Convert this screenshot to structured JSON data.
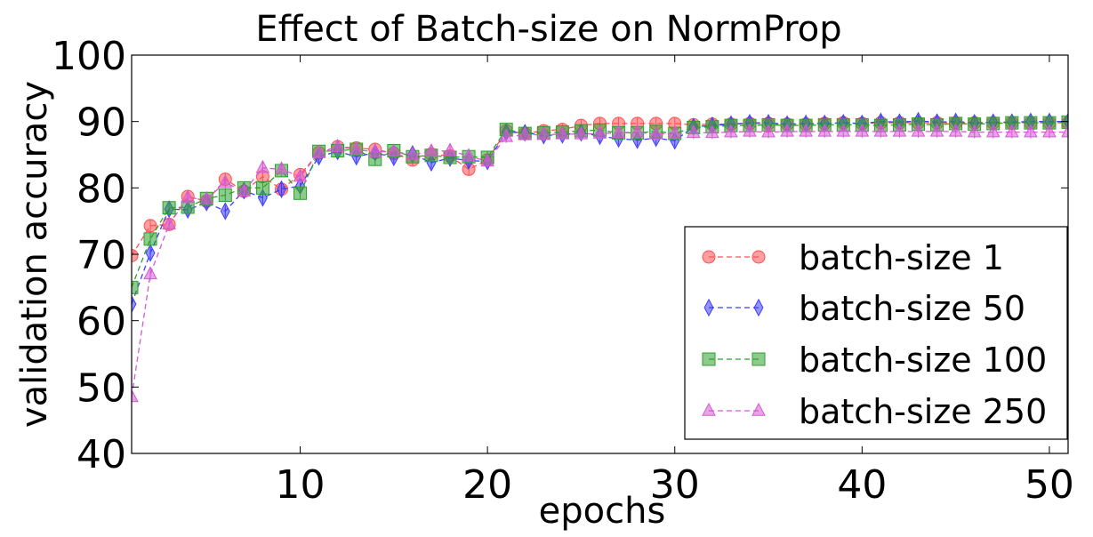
{
  "chart_data": {
    "type": "line",
    "title": "Effect of Batch-size on NormProp",
    "xlabel": "epochs",
    "ylabel": "validation accuracy",
    "xlim": [
      1,
      51
    ],
    "ylim": [
      40,
      100
    ],
    "xticks": [
      10,
      20,
      30,
      40,
      50
    ],
    "yticks": [
      40,
      50,
      60,
      70,
      80,
      90,
      100
    ],
    "grid": false,
    "legend_position": "bottom-right",
    "x": [
      1,
      2,
      3,
      4,
      5,
      6,
      7,
      8,
      9,
      10,
      11,
      12,
      13,
      14,
      15,
      16,
      17,
      18,
      19,
      20,
      21,
      22,
      23,
      24,
      25,
      26,
      27,
      28,
      29,
      30,
      31,
      32,
      33,
      34,
      35,
      36,
      37,
      38,
      39,
      40,
      41,
      42,
      43,
      44,
      45,
      46,
      47,
      48,
      49,
      50,
      51
    ],
    "series": [
      {
        "name": "batch-size 1",
        "color": "#ff5050",
        "marker": "circle",
        "values": [
          69.8,
          74.3,
          74.5,
          78.7,
          78.0,
          81.3,
          79.5,
          81.7,
          79.8,
          82.0,
          85.3,
          86.2,
          86.0,
          85.8,
          85.2,
          84.2,
          85.1,
          84.8,
          82.8,
          84.2,
          88.6,
          88.2,
          88.6,
          88.8,
          89.4,
          89.7,
          89.7,
          89.7,
          89.7,
          89.7,
          89.5,
          89.6,
          89.6,
          89.7,
          89.7,
          89.6,
          89.6,
          89.7,
          89.8,
          89.7,
          89.8,
          89.8,
          89.8,
          89.8,
          89.8,
          89.8,
          89.8,
          89.8,
          89.8,
          89.8,
          89.8
        ]
      },
      {
        "name": "batch-size 50",
        "color": "#3c3cff",
        "marker": "diamond",
        "values": [
          62.5,
          70.2,
          76.8,
          76.7,
          77.8,
          76.5,
          79.6,
          78.5,
          79.8,
          80.3,
          84.7,
          85.5,
          84.7,
          85.3,
          84.6,
          85.1,
          83.8,
          84.5,
          84.1,
          84.0,
          88.4,
          88.3,
          87.9,
          88.0,
          88.3,
          87.8,
          87.4,
          87.2,
          87.5,
          87.1,
          89.2,
          89.4,
          89.6,
          89.8,
          89.8,
          89.6,
          89.7,
          89.7,
          89.8,
          89.7,
          90.0,
          89.9,
          90.1,
          89.9,
          90.0,
          89.8,
          89.9,
          89.9,
          90.0,
          90.0,
          90.0
        ]
      },
      {
        "name": "batch-size 100",
        "color": "#2ea02e",
        "marker": "square",
        "values": [
          65.0,
          72.3,
          77.0,
          77.1,
          78.4,
          78.9,
          80.0,
          80.0,
          82.6,
          79.2,
          85.5,
          85.6,
          85.8,
          84.3,
          85.6,
          84.7,
          84.9,
          84.6,
          84.7,
          84.6,
          88.8,
          88.2,
          88.3,
          88.4,
          88.6,
          88.7,
          88.3,
          88.3,
          88.5,
          88.2,
          89.1,
          89.2,
          89.4,
          89.4,
          89.5,
          89.4,
          89.4,
          89.5,
          89.5,
          89.5,
          89.4,
          89.5,
          89.6,
          89.5,
          89.7,
          89.6,
          89.7,
          89.8,
          89.8,
          89.8,
          89.9
        ]
      },
      {
        "name": "batch-size 250",
        "color": "#d45ad4",
        "marker": "triangle",
        "values": [
          48.5,
          67.0,
          74.5,
          78.5,
          78.3,
          80.8,
          79.5,
          83.0,
          82.8,
          81.7,
          85.3,
          86.2,
          85.8,
          85.4,
          85.5,
          85.0,
          85.5,
          85.6,
          84.8,
          84.0,
          87.7,
          88.0,
          88.0,
          88.1,
          88.1,
          88.2,
          88.3,
          88.4,
          88.1,
          88.2,
          88.3,
          88.3,
          88.4,
          88.5,
          88.4,
          88.5,
          88.5,
          88.5,
          88.5,
          88.5,
          88.5,
          88.5,
          88.5,
          88.5,
          88.5,
          88.4,
          88.4,
          88.4,
          88.4,
          88.4,
          88.4
        ]
      }
    ]
  }
}
